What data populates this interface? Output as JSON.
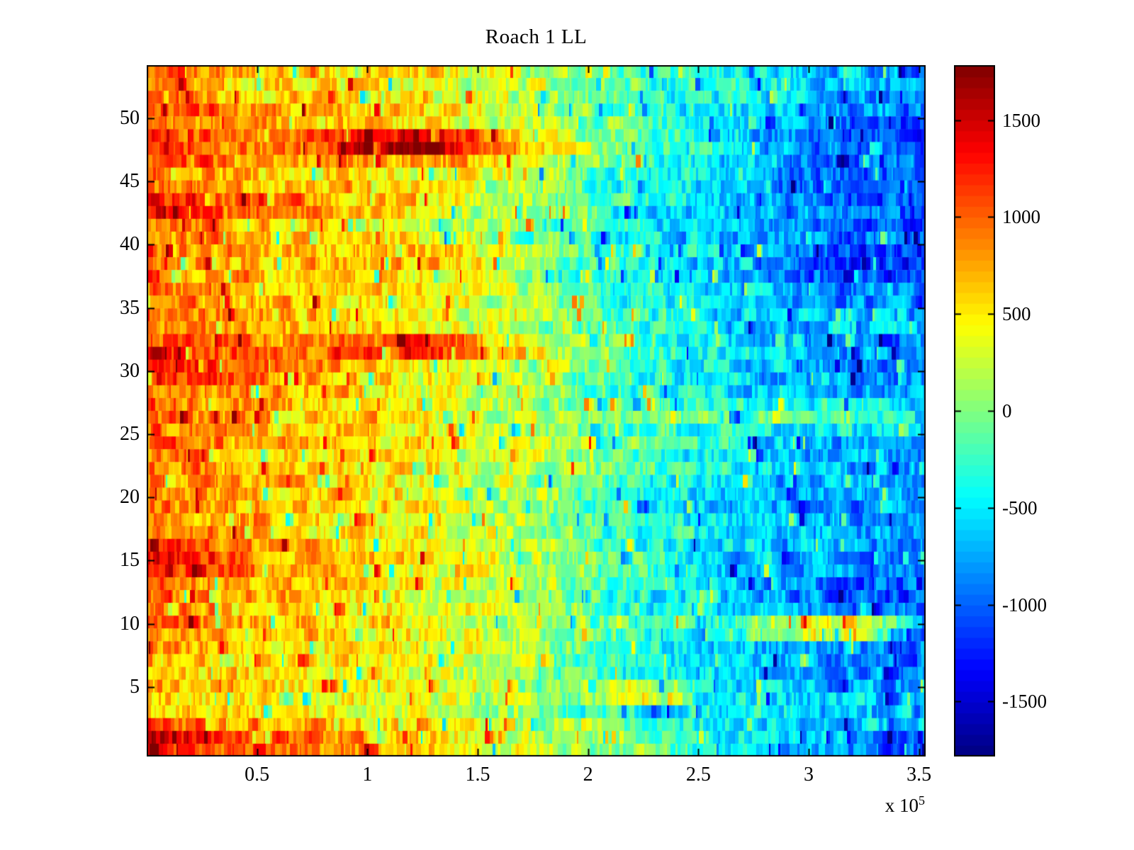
{
  "figure": {
    "background": "#ffffff",
    "title": "Roach 1 LL"
  },
  "axes": {
    "x": {
      "tick_labels": [
        "0.5",
        "1",
        "1.5",
        "2",
        "2.5",
        "3",
        "3.5"
      ],
      "tick_values": [
        50000,
        100000,
        150000,
        200000,
        250000,
        300000,
        350000
      ],
      "multiplier_text": "x 10",
      "multiplier_exponent": "5",
      "range": [
        0,
        353000
      ]
    },
    "y": {
      "tick_labels": [
        "5",
        "10",
        "15",
        "20",
        "25",
        "30",
        "35",
        "40",
        "45",
        "50"
      ],
      "tick_values": [
        5,
        10,
        15,
        20,
        25,
        30,
        35,
        40,
        45,
        50
      ],
      "range": [
        0,
        54
      ]
    }
  },
  "colorbar": {
    "tick_labels": [
      "1500",
      "1000",
      "500",
      "0",
      "-500",
      "-1000",
      "-1500"
    ],
    "tick_values": [
      1500,
      1000,
      500,
      0,
      -500,
      -1000,
      -1500
    ],
    "range": [
      -1780,
      1780
    ],
    "colormap": "jet",
    "bands": 64
  },
  "chart_data": {
    "type": "heatmap",
    "title": "Roach 1 LL",
    "xlabel": "",
    "ylabel": "",
    "x_range": [
      0,
      353000
    ],
    "y_range": [
      0,
      54
    ],
    "n_rows": 54,
    "color_range": [
      -1780,
      1780
    ],
    "colormap": "jet",
    "legend": "colorbar-right",
    "grid_x": [
      0,
      32000,
      64000,
      96000,
      128000,
      160000,
      193000,
      225000,
      257000,
      289000,
      321000,
      353000
    ],
    "rows_order": "top_to_bottom_y54_to_y1",
    "note": "approximate smoothed field values estimated from pixel colors; fine vertical striping is noise around these means",
    "approx_values": [
      [
        1150,
        800,
        620,
        560,
        500,
        320,
        20,
        -220,
        -380,
        -550,
        -700,
        -850
      ],
      [
        880,
        660,
        560,
        460,
        360,
        240,
        80,
        -180,
        -320,
        -480,
        -620,
        -780
      ],
      [
        920,
        720,
        560,
        500,
        400,
        200,
        0,
        -260,
        -420,
        -620,
        -760,
        -870
      ],
      [
        1120,
        860,
        700,
        650,
        600,
        350,
        60,
        -260,
        -460,
        -680,
        -820,
        -920
      ],
      [
        1050,
        820,
        660,
        600,
        500,
        300,
        80,
        -220,
        -450,
        -750,
        -950,
        -1000
      ],
      [
        1250,
        950,
        750,
        1300,
        1600,
        800,
        200,
        -120,
        -420,
        -800,
        -1000,
        -1050
      ],
      [
        1300,
        1000,
        800,
        1450,
        1700,
        900,
        250,
        -80,
        -380,
        -750,
        -950,
        -1000
      ],
      [
        1150,
        870,
        700,
        760,
        800,
        500,
        150,
        -220,
        -460,
        -800,
        -1000,
        -1050
      ],
      [
        930,
        760,
        620,
        560,
        500,
        350,
        0,
        -320,
        -520,
        -850,
        -1050,
        -1100
      ],
      [
        960,
        800,
        660,
        600,
        500,
        300,
        -60,
        -360,
        -560,
        -900,
        -1100,
        -1150
      ],
      [
        1300,
        1100,
        900,
        700,
        500,
        250,
        -100,
        -400,
        -600,
        -850,
        -1000,
        -1100
      ],
      [
        1400,
        1180,
        900,
        650,
        450,
        200,
        -100,
        -400,
        -650,
        -600,
        -800,
        -1050
      ],
      [
        1020,
        820,
        660,
        510,
        400,
        150,
        -150,
        -450,
        -650,
        -800,
        -950,
        -1050
      ],
      [
        960,
        760,
        610,
        500,
        350,
        100,
        -200,
        -500,
        -700,
        -850,
        -950,
        -1000
      ],
      [
        1060,
        860,
        700,
        620,
        760,
        400,
        0,
        -300,
        -550,
        -850,
        -1150,
        -1200
      ],
      [
        1010,
        810,
        660,
        610,
        700,
        350,
        -50,
        -350,
        -600,
        -900,
        -1200,
        -1100
      ],
      [
        960,
        810,
        610,
        510,
        450,
        200,
        -100,
        -400,
        -600,
        -850,
        -1150,
        -1050
      ],
      [
        910,
        760,
        610,
        510,
        400,
        150,
        -150,
        -400,
        -600,
        -750,
        -900,
        -950
      ],
      [
        950,
        800,
        650,
        560,
        450,
        250,
        -50,
        -350,
        -550,
        -750,
        -850,
        -900
      ],
      [
        1000,
        850,
        700,
        600,
        500,
        300,
        0,
        -300,
        -500,
        -700,
        -500,
        -850
      ],
      [
        950,
        800,
        650,
        560,
        450,
        250,
        -100,
        -350,
        -550,
        -700,
        -450,
        -800
      ],
      [
        1060,
        900,
        760,
        900,
        1100,
        600,
        100,
        -250,
        -500,
        -700,
        -850,
        -900
      ],
      [
        1300,
        1060,
        800,
        1000,
        1200,
        650,
        150,
        -200,
        -450,
        -650,
        -800,
        -850
      ],
      [
        1420,
        1150,
        860,
        650,
        500,
        300,
        50,
        -250,
        -500,
        -700,
        -800,
        -850
      ],
      [
        1360,
        1100,
        800,
        600,
        450,
        250,
        0,
        -300,
        -500,
        -700,
        -800,
        -850
      ],
      [
        1060,
        900,
        760,
        600,
        450,
        250,
        0,
        -300,
        -500,
        -650,
        -750,
        -800
      ],
      [
        1000,
        860,
        700,
        560,
        450,
        250,
        0,
        -250,
        -250,
        -350,
        -250,
        -750
      ],
      [
        960,
        800,
        660,
        560,
        450,
        250,
        50,
        -150,
        -150,
        -200,
        -300,
        -700
      ],
      [
        910,
        760,
        650,
        560,
        450,
        250,
        0,
        -250,
        -300,
        -400,
        -450,
        -750
      ],
      [
        960,
        810,
        700,
        600,
        500,
        300,
        150,
        -100,
        -400,
        -600,
        -700,
        -800
      ],
      [
        910,
        760,
        650,
        560,
        450,
        300,
        100,
        -200,
        -450,
        -650,
        -750,
        -800
      ],
      [
        960,
        810,
        660,
        560,
        450,
        300,
        100,
        -200,
        -400,
        -600,
        -700,
        -750
      ],
      [
        910,
        760,
        650,
        560,
        450,
        250,
        0,
        -300,
        -500,
        -650,
        -750,
        -800
      ],
      [
        860,
        710,
        600,
        500,
        400,
        200,
        -50,
        -350,
        -550,
        -700,
        -800,
        -900
      ],
      [
        910,
        760,
        650,
        560,
        450,
        250,
        -100,
        -400,
        -600,
        -750,
        -850,
        -950
      ],
      [
        860,
        710,
        600,
        500,
        400,
        200,
        -100,
        -350,
        -500,
        -650,
        -750,
        -800
      ],
      [
        910,
        800,
        660,
        560,
        450,
        250,
        0,
        -300,
        -500,
        -650,
        -750,
        -800
      ],
      [
        1220,
        960,
        760,
        600,
        500,
        300,
        0,
        -300,
        -500,
        -700,
        -800,
        -850
      ],
      [
        1460,
        1160,
        860,
        650,
        500,
        300,
        50,
        -250,
        -500,
        -700,
        -850,
        -900
      ],
      [
        1400,
        1100,
        810,
        600,
        450,
        250,
        0,
        -300,
        -550,
        -750,
        -900,
        -950
      ],
      [
        1010,
        860,
        700,
        560,
        450,
        250,
        0,
        -300,
        -550,
        -800,
        -950,
        -1000
      ],
      [
        960,
        810,
        660,
        560,
        450,
        250,
        -50,
        -350,
        -550,
        -800,
        -950,
        -1000
      ],
      [
        910,
        760,
        650,
        560,
        450,
        250,
        0,
        -300,
        -500,
        -750,
        -900,
        -950
      ],
      [
        960,
        810,
        700,
        600,
        500,
        300,
        50,
        -250,
        -450,
        250,
        400,
        -800
      ],
      [
        910,
        790,
        660,
        560,
        450,
        250,
        0,
        -300,
        -500,
        200,
        350,
        -850
      ],
      [
        860,
        710,
        600,
        500,
        400,
        200,
        -50,
        -350,
        -550,
        -700,
        -800,
        -850
      ],
      [
        660,
        560,
        510,
        450,
        350,
        150,
        -100,
        -400,
        -550,
        -700,
        -800,
        -850
      ],
      [
        610,
        510,
        460,
        400,
        300,
        100,
        -150,
        -400,
        -550,
        -700,
        -800,
        -850
      ],
      [
        710,
        610,
        560,
        450,
        350,
        150,
        -100,
        500,
        -500,
        -650,
        -750,
        -800
      ],
      [
        560,
        490,
        430,
        350,
        250,
        100,
        -150,
        450,
        -450,
        -600,
        -700,
        -750
      ],
      [
        510,
        460,
        400,
        350,
        250,
        100,
        -150,
        -350,
        -450,
        -550,
        -650,
        -700
      ],
      [
        1120,
        910,
        760,
        600,
        500,
        300,
        100,
        -150,
        -350,
        -500,
        -600,
        -650
      ],
      [
        1520,
        1260,
        960,
        760,
        560,
        350,
        100,
        -150,
        -350,
        -600,
        -800,
        -950
      ],
      [
        1380,
        1160,
        960,
        810,
        600,
        400,
        150,
        -100,
        -350,
        -600,
        -900,
        -1100
      ]
    ]
  }
}
